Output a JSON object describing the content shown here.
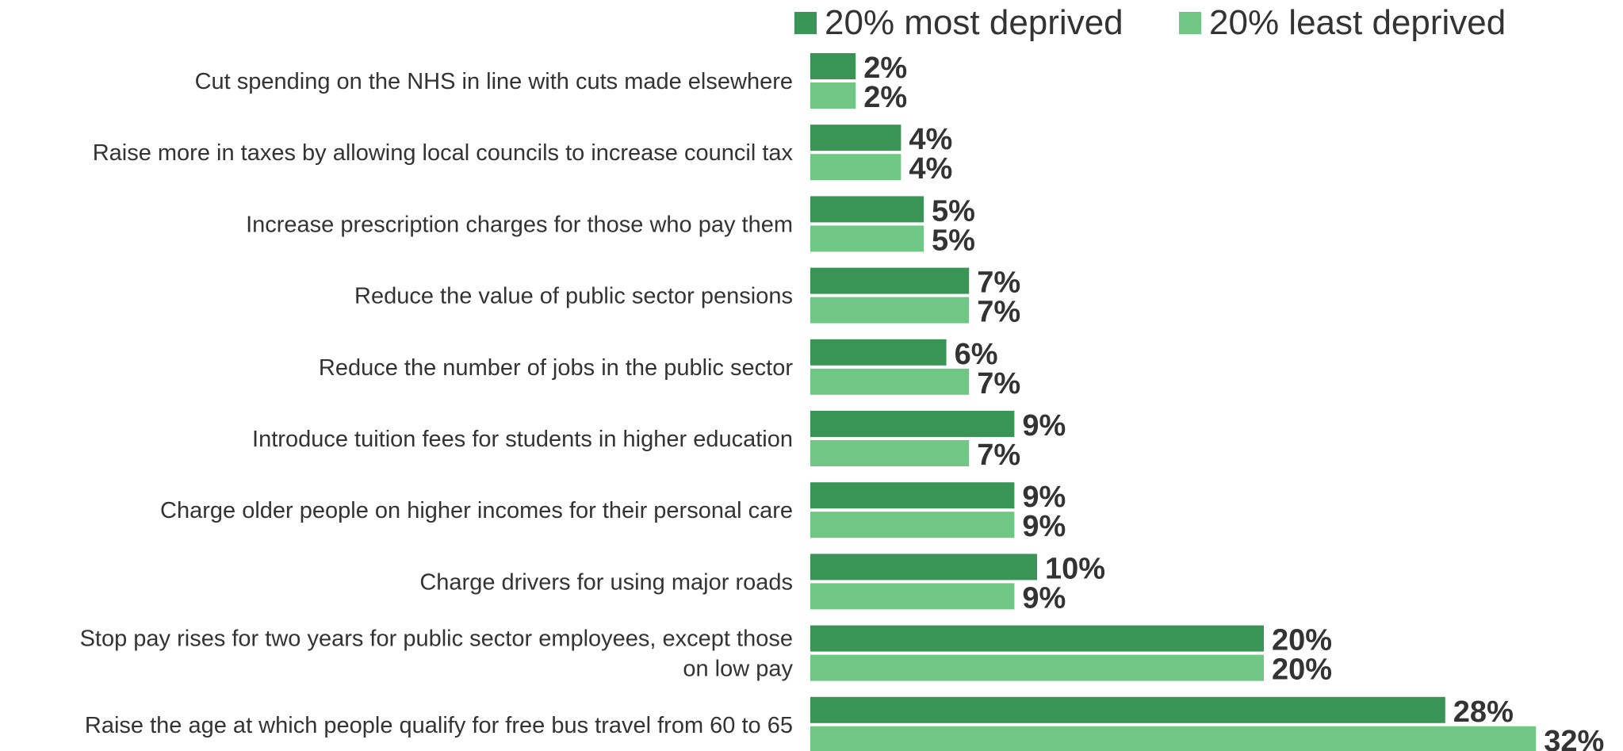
{
  "colors": {
    "series_most": "#3a9455",
    "series_least": "#6fc685",
    "text": "#333333"
  },
  "legend": {
    "items": [
      {
        "label": "20% most deprived",
        "color": "#3a9455"
      },
      {
        "label": "20% least deprived",
        "color": "#6fc685"
      }
    ],
    "placement": "top-right"
  },
  "chart_data": {
    "type": "bar",
    "orientation": "horizontal",
    "title": "",
    "xlabel": "",
    "ylabel": "",
    "xlim": [
      0,
      32
    ],
    "grid": false,
    "categories": [
      [
        "Cut spending on the NHS in line with cuts made elsewhere"
      ],
      [
        "Raise more in taxes by allowing local councils to increase council tax"
      ],
      [
        "Increase prescription charges for those who pay them"
      ],
      [
        "Reduce the value of public sector pensions"
      ],
      [
        "Reduce the number of jobs in the public sector"
      ],
      [
        "Introduce tuition fees for students in higher education"
      ],
      [
        "Charge older people on higher incomes for their personal care"
      ],
      [
        "Charge drivers for using major roads"
      ],
      [
        "Stop pay rises for two years for public sector employees, except those",
        "on low pay"
      ],
      [
        "Raise the age at which people qualify for free bus travel from 60 to 65"
      ]
    ],
    "series": [
      {
        "name": "20% most deprived",
        "values": [
          2,
          4,
          5,
          7,
          6,
          9,
          9,
          10,
          20,
          28
        ],
        "labels": [
          "2%",
          "4%",
          "5%",
          "7%",
          "6%",
          "9%",
          "9%",
          "10%",
          "20%",
          "28%"
        ]
      },
      {
        "name": "20% least deprived",
        "values": [
          2,
          4,
          5,
          7,
          7,
          7,
          9,
          9,
          20,
          32
        ],
        "labels": [
          "2%",
          "4%",
          "5%",
          "7%",
          "7%",
          "7%",
          "9%",
          "9%",
          "20%",
          "32%"
        ]
      }
    ]
  }
}
